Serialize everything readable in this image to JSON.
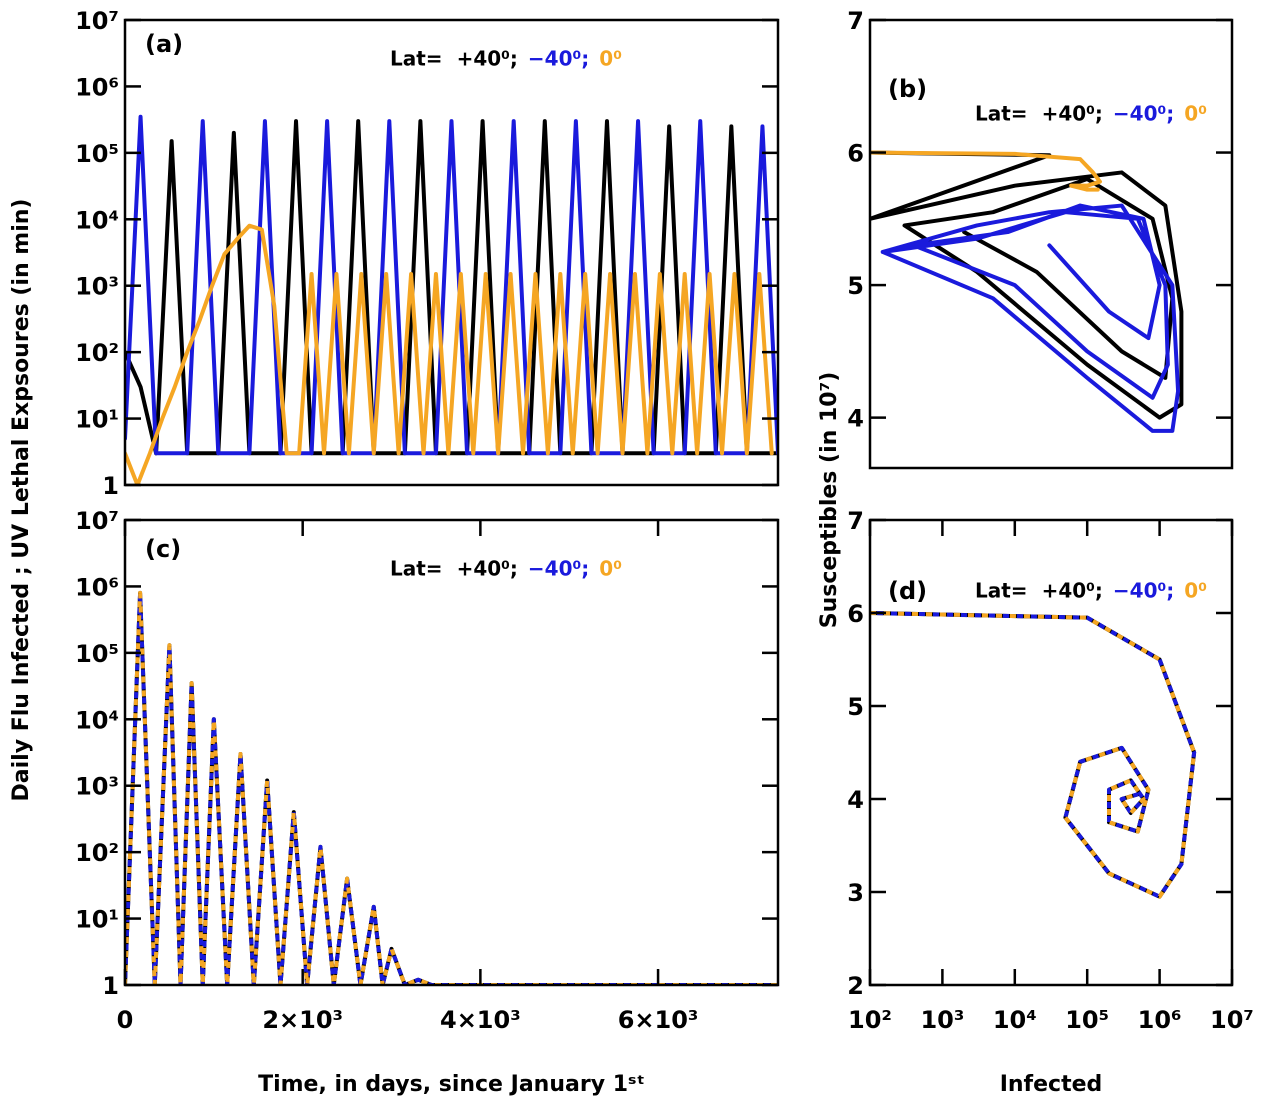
{
  "chart_data": [
    {
      "type": "line",
      "panel_label": "(a)",
      "legend_title": "Lat=",
      "yscale": "log",
      "ylabel": "Daily Flu Infected ; UV Lethal Expsoures (in min)",
      "xlim": [
        0,
        7350
      ],
      "ylim": [
        1,
        10000000
      ],
      "yticks": [
        1,
        {
          "value": 10,
          "label": "10¹"
        },
        {
          "value": 100,
          "label": "10²"
        },
        {
          "value": 1000,
          "label": "10³"
        },
        {
          "value": 10000,
          "label": "10⁴"
        },
        {
          "value": 100000,
          "label": "10⁵"
        },
        {
          "value": 1000000,
          "label": "10⁶"
        },
        {
          "value": 10000000,
          "label": "10⁷"
        }
      ],
      "series": [
        {
          "name": "+40⁰;",
          "color": "#000000",
          "x": [
            0,
            175,
            350,
            525,
            700,
            875,
            1050,
            1225,
            1400,
            1575,
            1750,
            1925,
            2100,
            2275,
            2450,
            2625,
            2800,
            2975,
            3150,
            3325,
            3500,
            3675,
            3850,
            4025,
            4200,
            4375,
            4550,
            4725,
            4900,
            5075,
            5250,
            5425,
            5600,
            5775,
            5950,
            6125,
            6300,
            6475,
            6650,
            6825,
            7000,
            7175,
            7350
          ],
          "values": [
            100,
            30,
            3,
            150000,
            3,
            3,
            3,
            200000,
            3,
            3,
            3,
            300000,
            3,
            3,
            3,
            300000,
            3,
            3,
            3,
            300000,
            3,
            3,
            3,
            300000,
            3,
            3,
            3,
            300000,
            3,
            3,
            3,
            300000,
            3,
            3,
            3,
            250000,
            3,
            3,
            3,
            250000,
            3,
            3,
            3
          ]
        },
        {
          "name": "−40⁰;",
          "color": "#1a1adc",
          "x": [
            0,
            175,
            350,
            525,
            700,
            875,
            1050,
            1225,
            1400,
            1575,
            1750,
            1925,
            2100,
            2275,
            2450,
            2625,
            2800,
            2975,
            3150,
            3325,
            3500,
            3675,
            3850,
            4025,
            4200,
            4375,
            4550,
            4725,
            4900,
            5075,
            5250,
            5425,
            5600,
            5775,
            5950,
            6125,
            6300,
            6475,
            6650,
            6825,
            7000,
            7175,
            7350
          ],
          "values": [
            5,
            350000,
            3,
            3,
            3,
            300000,
            3,
            3,
            3,
            300000,
            3,
            3,
            3,
            300000,
            3,
            3,
            3,
            300000,
            3,
            3,
            3,
            300000,
            3,
            3,
            3,
            300000,
            3,
            3,
            3,
            300000,
            3,
            3,
            3,
            300000,
            3,
            3,
            3,
            300000,
            3,
            3,
            3,
            250000,
            3
          ]
        },
        {
          "name": "0⁰",
          "color": "#f5a623",
          "x": [
            0,
            140,
            280,
            420,
            560,
            700,
            840,
            980,
            1120,
            1260,
            1400,
            1540,
            1680,
            1820,
            1960,
            2100,
            2240,
            2380,
            2520,
            2660,
            2800,
            2940,
            3080,
            3220,
            3360,
            3500,
            3640,
            3780,
            3920,
            4060,
            4200,
            4340,
            4480,
            4620,
            4760,
            4900,
            5040,
            5180,
            5320,
            5460,
            5600,
            5740,
            5880,
            6020,
            6160,
            6300,
            6440,
            6580,
            6720,
            6860,
            7000,
            7140,
            7280
          ],
          "values": [
            3,
            1,
            3,
            10,
            30,
            100,
            300,
            1000,
            3000,
            5000,
            8000,
            7000,
            500,
            3,
            3,
            1500,
            3,
            1500,
            3,
            1500,
            3,
            1500,
            3,
            1500,
            3,
            1500,
            3,
            1500,
            3,
            1500,
            3,
            1500,
            3,
            1500,
            3,
            1500,
            3,
            1500,
            3,
            1500,
            3,
            1500,
            3,
            1500,
            3,
            1500,
            3,
            1500,
            3,
            1500,
            3,
            1500,
            3
          ]
        }
      ]
    },
    {
      "type": "line",
      "panel_label": "(b)",
      "legend_title": "Lat=",
      "xscale": "log",
      "ylabel": "Susceptibles (in 10⁷)",
      "xlim": [
        100,
        10000000
      ],
      "ylim": [
        3.62,
        7
      ],
      "yticks": [
        4,
        5,
        6,
        7
      ],
      "series": [
        {
          "name": "+40⁰;",
          "color": "#000000",
          "x": [
            100,
            30000,
            100,
            10000,
            300000,
            1200000,
            2000000,
            2000000,
            1000000,
            100000,
            3000,
            300,
            5000,
            100000,
            800000,
            1500000,
            1200000,
            300000,
            20000,
            2000
          ],
          "values": [
            6,
            5.98,
            5.5,
            5.75,
            5.85,
            5.6,
            4.8,
            4.1,
            4.0,
            4.4,
            5.1,
            5.45,
            5.55,
            5.8,
            5.5,
            4.9,
            4.3,
            4.5,
            5.1,
            5.4
          ]
        },
        {
          "name": "−40⁰;",
          "color": "#1a1adc",
          "x": [
            150,
            3000,
            30000,
            300000,
            1500000,
            1800000,
            1500000,
            800000,
            100000,
            5000,
            150,
            3000,
            50000,
            500000,
            1200000,
            1300000,
            800000,
            100000,
            10000,
            400,
            8000,
            80000,
            600000,
            1000000,
            700000,
            200000,
            30000
          ],
          "values": [
            5.25,
            5.45,
            5.55,
            5.6,
            5.0,
            4.2,
            3.9,
            3.9,
            4.3,
            4.9,
            5.25,
            5.35,
            5.55,
            5.5,
            5.0,
            4.4,
            4.15,
            4.5,
            5.0,
            5.3,
            5.4,
            5.6,
            5.5,
            5.0,
            4.6,
            4.8,
            5.3
          ]
        },
        {
          "name": "0⁰",
          "color": "#f5a623",
          "x": [
            100,
            10000,
            80000,
            120000,
            150000,
            100000,
            60000,
            100000,
            140000
          ],
          "values": [
            6.0,
            5.99,
            5.95,
            5.85,
            5.78,
            5.75,
            5.75,
            5.72,
            5.72
          ]
        }
      ]
    },
    {
      "type": "line",
      "panel_label": "(c)",
      "legend_title": "Lat=",
      "yscale": "log",
      "xlabel": "Time, in days, since January 1ˢᵗ",
      "xlim": [
        0,
        7350
      ],
      "ylim": [
        1,
        10000000
      ],
      "xticks": [
        0,
        {
          "value": 2000,
          "label": "2×10³"
        },
        {
          "value": 4000,
          "label": "4×10³"
        },
        {
          "value": 6000,
          "label": "6×10³"
        }
      ],
      "yticks": [
        1,
        {
          "value": 10,
          "label": "10¹"
        },
        {
          "value": 100,
          "label": "10²"
        },
        {
          "value": 1000,
          "label": "10³"
        },
        {
          "value": 10000,
          "label": "10⁴"
        },
        {
          "value": 100000,
          "label": "10⁵"
        },
        {
          "value": 1000000,
          "label": "10⁶"
        },
        {
          "value": 10000000,
          "label": "10⁷"
        }
      ],
      "x": [
        0,
        170,
        335,
        500,
        625,
        750,
        875,
        1000,
        1150,
        1300,
        1450,
        1600,
        1750,
        1900,
        2050,
        2200,
        2350,
        2500,
        2650,
        2800,
        2900,
        3000,
        3150,
        3300,
        3450,
        7350
      ],
      "series": [
        {
          "name": "+40⁰;",
          "color": "#000000",
          "values": [
            1,
            800000,
            1,
            130000,
            1,
            35000,
            1,
            10000,
            1,
            3000,
            1,
            1200,
            1,
            400,
            1,
            120,
            1,
            40,
            1,
            15,
            1,
            3.5,
            1,
            1.2,
            1,
            1
          ]
        },
        {
          "name": "−40⁰;",
          "color": "#1a1adc",
          "dashed": true,
          "values": [
            1,
            800000,
            1,
            130000,
            1,
            35000,
            1,
            10000,
            1,
            3000,
            1,
            1200,
            1,
            400,
            1,
            120,
            1,
            40,
            1,
            15,
            1,
            3.5,
            1,
            1.2,
            1,
            1
          ]
        },
        {
          "name": "0⁰",
          "color": "#f5a623",
          "dashed": true,
          "values": [
            1,
            800000,
            1,
            130000,
            1,
            35000,
            1,
            10000,
            1,
            3000,
            1,
            1200,
            1,
            400,
            1,
            120,
            1,
            40,
            1,
            15,
            1,
            3.5,
            1,
            1.2,
            1,
            1
          ]
        }
      ]
    },
    {
      "type": "line",
      "panel_label": "(d)",
      "legend_title": "Lat=",
      "xscale": "log",
      "xlabel": "Infected",
      "xlim": [
        100,
        10000000
      ],
      "ylim": [
        2,
        7
      ],
      "yticks": [
        2,
        3,
        4,
        5,
        6,
        7
      ],
      "xticks": [
        {
          "value": 100,
          "label": "10²"
        },
        {
          "value": 1000,
          "label": "10³"
        },
        {
          "value": 10000,
          "label": "10⁴"
        },
        {
          "value": 100000,
          "label": "10⁵"
        },
        {
          "value": 1000000,
          "label": "10⁶"
        },
        {
          "value": 10000000,
          "label": "10⁷"
        }
      ],
      "x": [
        100,
        100000,
        1000000,
        3000000,
        2000000,
        1000000,
        200000,
        50000,
        80000,
        300000,
        700000,
        500000,
        200000,
        200000,
        400000,
        600000,
        400000,
        300000,
        500000
      ],
      "series": [
        {
          "name": "+40⁰;",
          "color": "#000000",
          "values": [
            6,
            5.95,
            5.5,
            4.5,
            3.3,
            2.95,
            3.2,
            3.8,
            4.4,
            4.55,
            4.1,
            3.65,
            3.75,
            4.1,
            4.2,
            4.0,
            3.85,
            4.0,
            4.05
          ]
        },
        {
          "name": "−40⁰;",
          "color": "#1a1adc",
          "dashed": true,
          "values": [
            6,
            5.95,
            5.5,
            4.5,
            3.3,
            2.95,
            3.2,
            3.8,
            4.4,
            4.55,
            4.1,
            3.65,
            3.75,
            4.1,
            4.2,
            4.0,
            3.85,
            4.0,
            4.05
          ]
        },
        {
          "name": "0⁰",
          "color": "#f5a623",
          "dashed": true,
          "values": [
            6,
            5.95,
            5.5,
            4.5,
            3.3,
            2.95,
            3.2,
            3.8,
            4.4,
            4.55,
            4.1,
            3.65,
            3.75,
            4.1,
            4.2,
            4.0,
            3.85,
            4.0,
            4.05
          ]
        }
      ]
    }
  ]
}
